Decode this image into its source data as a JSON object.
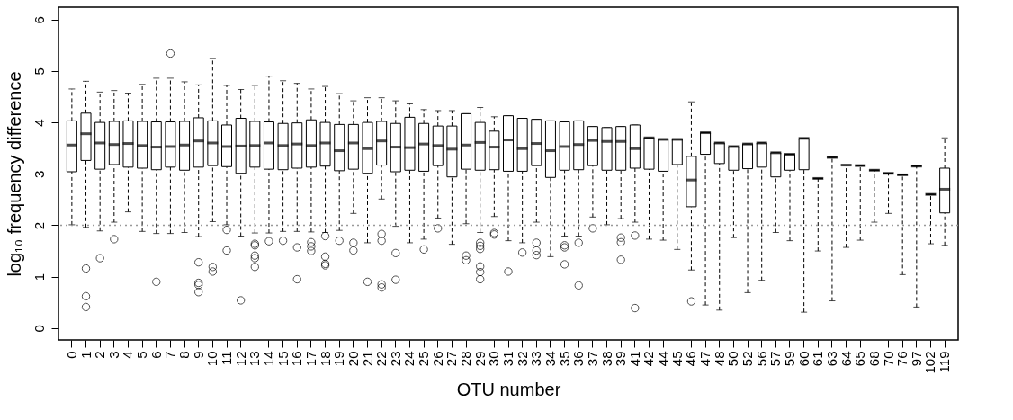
{
  "chart_data": {
    "type": "box",
    "xlabel": "OTU number",
    "ylabel": "log₁₀ frequency difference",
    "categories": [
      "0",
      "1",
      "2",
      "3",
      "4",
      "5",
      "6",
      "7",
      "8",
      "9",
      "10",
      "11",
      "12",
      "13",
      "14",
      "15",
      "16",
      "17",
      "18",
      "19",
      "20",
      "21",
      "22",
      "23",
      "24",
      "25",
      "26",
      "27",
      "28",
      "29",
      "30",
      "31",
      "32",
      "33",
      "34",
      "35",
      "36",
      "37",
      "38",
      "39",
      "41",
      "42",
      "44",
      "45",
      "46",
      "47",
      "48",
      "50",
      "52",
      "56",
      "57",
      "59",
      "60",
      "61",
      "63",
      "64",
      "65",
      "68",
      "70",
      "76",
      "97",
      "102",
      "119"
    ],
    "boxes": [
      {
        "low": 2.01,
        "q1": 3.04,
        "median": 3.56,
        "q3": 4.03,
        "high": 4.65
      },
      {
        "low": 1.96,
        "q1": 3.26,
        "median": 3.78,
        "q3": 4.18,
        "high": 4.8,
        "outliers": [
          1.16,
          0.62,
          0.41
        ]
      },
      {
        "low": 1.89,
        "q1": 3.09,
        "median": 3.6,
        "q3": 4.0,
        "high": 4.59,
        "outliers": [
          1.36
        ]
      },
      {
        "low": 2.06,
        "q1": 3.18,
        "median": 3.57,
        "q3": 4.02,
        "high": 4.62,
        "outliers": [
          1.73
        ]
      },
      {
        "low": 2.26,
        "q1": 3.13,
        "median": 3.59,
        "q3": 4.03,
        "high": 4.57
      },
      {
        "low": 1.88,
        "q1": 3.11,
        "median": 3.55,
        "q3": 4.02,
        "high": 4.74
      },
      {
        "low": 1.84,
        "q1": 3.08,
        "median": 3.52,
        "q3": 4.01,
        "high": 4.86,
        "outliers": [
          0.9
        ]
      },
      {
        "low": 1.84,
        "q1": 3.13,
        "median": 3.53,
        "q3": 4.01,
        "high": 4.86,
        "outliers": [
          5.34
        ]
      },
      {
        "low": 1.86,
        "q1": 3.07,
        "median": 3.56,
        "q3": 4.02,
        "high": 4.79
      },
      {
        "low": 1.78,
        "q1": 3.13,
        "median": 3.64,
        "q3": 4.09,
        "high": 4.73,
        "outliers": [
          1.28,
          0.88,
          0.84,
          0.7
        ]
      },
      {
        "low": 2.07,
        "q1": 3.16,
        "median": 3.6,
        "q3": 4.03,
        "high": 5.24,
        "outliers": [
          1.19,
          1.1
        ]
      },
      {
        "low": 2.01,
        "q1": 3.14,
        "median": 3.53,
        "q3": 3.95,
        "high": 4.72,
        "outliers": [
          1.91,
          1.51
        ]
      },
      {
        "low": 1.79,
        "q1": 3.01,
        "median": 3.54,
        "q3": 4.08,
        "high": 4.64,
        "outliers": [
          0.54
        ]
      },
      {
        "low": 1.85,
        "q1": 3.13,
        "median": 3.55,
        "q3": 4.02,
        "high": 4.72,
        "outliers": [
          1.64,
          1.61,
          1.41,
          1.36,
          1.19
        ]
      },
      {
        "low": 1.85,
        "q1": 3.09,
        "median": 3.6,
        "q3": 4.01,
        "high": 4.9,
        "outliers": [
          1.69
        ]
      },
      {
        "low": 1.88,
        "q1": 3.08,
        "median": 3.55,
        "q3": 3.98,
        "high": 4.81,
        "outliers": [
          1.7
        ]
      },
      {
        "low": 1.88,
        "q1": 3.11,
        "median": 3.58,
        "q3": 3.99,
        "high": 4.76,
        "outliers": [
          1.57,
          0.95
        ]
      },
      {
        "low": 1.87,
        "q1": 3.13,
        "median": 3.55,
        "q3": 4.05,
        "high": 4.65,
        "outliers": [
          1.67,
          1.59,
          1.5
        ]
      },
      {
        "low": 1.86,
        "q1": 3.15,
        "median": 3.6,
        "q3": 4.0,
        "high": 4.7,
        "outliers": [
          1.79,
          1.39,
          1.25,
          1.22
        ]
      },
      {
        "low": 1.9,
        "q1": 3.06,
        "median": 3.45,
        "q3": 3.96,
        "high": 4.56,
        "outliers": [
          1.7
        ]
      },
      {
        "low": 2.23,
        "q1": 3.09,
        "median": 3.6,
        "q3": 3.96,
        "high": 4.42,
        "outliers": [
          1.66,
          1.51
        ]
      },
      {
        "low": 1.66,
        "q1": 3.01,
        "median": 3.49,
        "q3": 4.0,
        "high": 4.48,
        "outliers": [
          0.9
        ]
      },
      {
        "low": 2.51,
        "q1": 3.17,
        "median": 3.64,
        "q3": 4.02,
        "high": 4.48,
        "outliers": [
          1.83,
          1.7,
          0.85,
          0.79
        ]
      },
      {
        "low": 1.98,
        "q1": 3.04,
        "median": 3.52,
        "q3": 3.98,
        "high": 4.42,
        "outliers": [
          1.46,
          0.94
        ]
      },
      {
        "low": 1.66,
        "q1": 3.07,
        "median": 3.51,
        "q3": 4.1,
        "high": 4.36
      },
      {
        "low": 1.73,
        "q1": 3.05,
        "median": 3.58,
        "q3": 3.98,
        "high": 4.25,
        "outliers": [
          1.53
        ]
      },
      {
        "low": 2.14,
        "q1": 3.16,
        "median": 3.55,
        "q3": 3.93,
        "high": 4.23,
        "outliers": [
          1.94
        ]
      },
      {
        "low": 1.63,
        "q1": 2.94,
        "median": 3.48,
        "q3": 3.93,
        "high": 4.23
      },
      {
        "low": 2.03,
        "q1": 3.09,
        "median": 3.56,
        "q3": 4.17,
        "high": 4.17,
        "outliers": [
          1.41,
          1.32
        ]
      },
      {
        "low": 1.86,
        "q1": 3.07,
        "median": 3.61,
        "q3": 4.0,
        "high": 4.29,
        "outliers": [
          1.66,
          1.6,
          1.54,
          1.2,
          1.09,
          0.95
        ]
      },
      {
        "low": 2.17,
        "q1": 3.08,
        "median": 3.52,
        "q3": 3.83,
        "high": 4.11,
        "outliers": [
          1.85,
          1.82
        ]
      },
      {
        "low": 1.7,
        "q1": 3.05,
        "median": 3.66,
        "q3": 4.13,
        "high": 4.13,
        "outliers": [
          1.1
        ]
      },
      {
        "low": 1.66,
        "q1": 3.05,
        "median": 3.49,
        "q3": 4.08,
        "high": 4.08,
        "outliers": [
          1.47
        ]
      },
      {
        "low": 2.06,
        "q1": 3.16,
        "median": 3.59,
        "q3": 4.06,
        "high": 4.06,
        "outliers": [
          1.66,
          1.51,
          1.42
        ]
      },
      {
        "low": 1.39,
        "q1": 2.93,
        "median": 3.45,
        "q3": 4.03,
        "high": 4.03
      },
      {
        "low": 1.79,
        "q1": 3.07,
        "median": 3.53,
        "q3": 4.01,
        "high": 4.01,
        "outliers": [
          1.61,
          1.57,
          1.24
        ]
      },
      {
        "low": 1.79,
        "q1": 3.08,
        "median": 3.57,
        "q3": 4.03,
        "high": 4.03,
        "outliers": [
          1.66,
          0.83
        ]
      },
      {
        "low": 2.16,
        "q1": 3.16,
        "median": 3.65,
        "q3": 3.92,
        "high": 3.92,
        "outliers": [
          1.94
        ]
      },
      {
        "low": 2.01,
        "q1": 3.07,
        "median": 3.63,
        "q3": 3.9,
        "high": 3.9
      },
      {
        "low": 2.13,
        "q1": 3.07,
        "median": 3.63,
        "q3": 3.92,
        "high": 3.92,
        "outliers": [
          1.76,
          1.67,
          1.33
        ]
      },
      {
        "low": 2.06,
        "q1": 3.11,
        "median": 3.49,
        "q3": 3.95,
        "high": 3.95,
        "outliers": [
          1.8,
          0.39
        ]
      },
      {
        "low": 1.73,
        "q1": 3.09,
        "median": 3.7,
        "q3": 3.7,
        "high": 3.7
      },
      {
        "low": 1.71,
        "q1": 3.05,
        "median": 3.67,
        "q3": 3.67,
        "high": 3.67
      },
      {
        "low": 1.53,
        "q1": 3.18,
        "median": 3.67,
        "q3": 3.67,
        "high": 3.67
      },
      {
        "low": 1.13,
        "q1": 2.36,
        "median": 2.88,
        "q3": 3.34,
        "high": 4.4,
        "outliers": [
          0.52
        ]
      },
      {
        "low": 0.45,
        "q1": 3.38,
        "median": 3.8,
        "q3": 3.8,
        "high": 3.8
      },
      {
        "low": 0.35,
        "q1": 3.2,
        "median": 3.6,
        "q3": 3.6,
        "high": 3.6
      },
      {
        "low": 1.76,
        "q1": 3.07,
        "median": 3.53,
        "q3": 3.53,
        "high": 3.53
      },
      {
        "low": 0.69,
        "q1": 3.1,
        "median": 3.58,
        "q3": 3.58,
        "high": 3.58
      },
      {
        "low": 0.93,
        "q1": 3.13,
        "median": 3.6,
        "q3": 3.6,
        "high": 3.6
      },
      {
        "low": 1.86,
        "q1": 2.94,
        "median": 3.41,
        "q3": 3.41,
        "high": 3.41
      },
      {
        "low": 1.7,
        "q1": 3.07,
        "median": 3.38,
        "q3": 3.38,
        "high": 3.38
      },
      {
        "low": 0.31,
        "q1": 3.08,
        "median": 3.69,
        "q3": 3.69,
        "high": 3.69
      },
      {
        "low": 1.5,
        "q1": 2.91,
        "median": 2.91,
        "q3": 2.91,
        "high": 2.91
      },
      {
        "low": 0.53,
        "q1": 3.32,
        "median": 3.32,
        "q3": 3.32,
        "high": 3.32
      },
      {
        "low": 1.57,
        "q1": 3.17,
        "median": 3.17,
        "q3": 3.17,
        "high": 3.17
      },
      {
        "low": 1.71,
        "q1": 3.16,
        "median": 3.16,
        "q3": 3.16,
        "high": 3.16
      },
      {
        "low": 2.06,
        "q1": 3.07,
        "median": 3.07,
        "q3": 3.07,
        "high": 3.07
      },
      {
        "low": 2.23,
        "q1": 3.01,
        "median": 3.01,
        "q3": 3.01,
        "high": 3.01
      },
      {
        "low": 1.04,
        "q1": 2.98,
        "median": 2.98,
        "q3": 2.98,
        "high": 2.98
      },
      {
        "low": 0.41,
        "q1": 3.15,
        "median": 3.15,
        "q3": 3.15,
        "high": 3.15
      },
      {
        "low": 1.64,
        "q1": 2.6,
        "median": 2.6,
        "q3": 2.6,
        "high": 2.6
      },
      {
        "low": 1.61,
        "q1": 2.24,
        "median": 2.7,
        "q3": 3.11,
        "high": 3.7
      }
    ],
    "ylim": [
      -0.23,
      6.24
    ],
    "yticks": [
      0,
      1,
      2,
      3,
      4,
      5,
      6
    ],
    "ref_lines": [
      {
        "axis": "y",
        "value": 2,
        "line_style": "dotted",
        "color": "#999999"
      }
    ],
    "marker": "circle",
    "grid": false
  }
}
